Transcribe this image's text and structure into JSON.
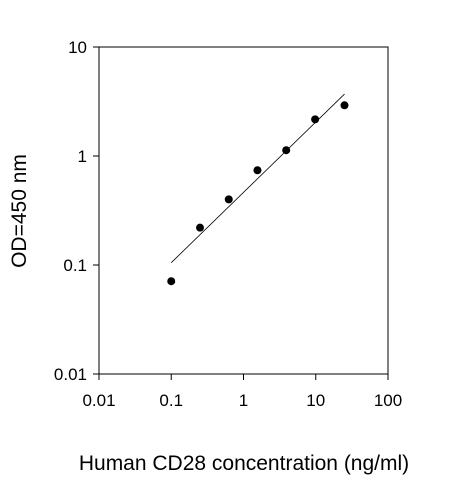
{
  "chart_data": {
    "type": "scatter",
    "title": "",
    "xlabel": "Human CD28 concentration (ng/ml)",
    "ylabel": "OD=450 nm",
    "x_scale": "log",
    "y_scale": "log",
    "xlim": [
      0.01,
      100
    ],
    "ylim": [
      0.01,
      10
    ],
    "x_ticks": [
      {
        "value": 0.01,
        "label": "0.01"
      },
      {
        "value": 0.1,
        "label": "0.1"
      },
      {
        "value": 1,
        "label": "1"
      },
      {
        "value": 10,
        "label": "10"
      },
      {
        "value": 100,
        "label": "100"
      }
    ],
    "y_ticks": [
      {
        "value": 0.01,
        "label": "0.01"
      },
      {
        "value": 0.1,
        "label": "0.1"
      },
      {
        "value": 1,
        "label": "1"
      },
      {
        "value": 10,
        "label": "10"
      }
    ],
    "grid": false,
    "legend": "none",
    "series": [
      {
        "type": "scatter",
        "x": [
          0.1,
          0.25,
          0.625,
          1.56,
          3.9,
          9.8,
          25
        ],
        "y": [
          0.071,
          0.22,
          0.4,
          0.74,
          1.13,
          2.17,
          2.92
        ]
      },
      {
        "type": "line",
        "x": [
          0.1,
          25
        ],
        "y": [
          0.105,
          3.7
        ]
      }
    ],
    "colors": {
      "marker": "#000000",
      "line": "#000000",
      "axis": "#000000"
    }
  }
}
